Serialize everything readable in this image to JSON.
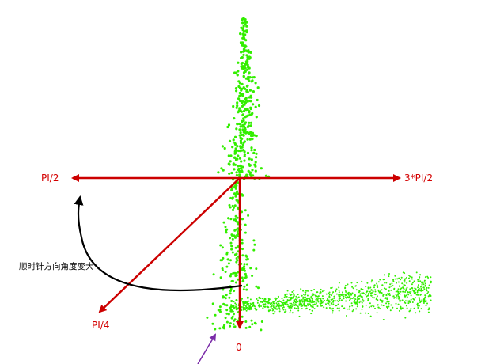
{
  "labels": {
    "left": "PI/2",
    "right": "3*PI/2",
    "diagonal": "PI/4",
    "bottom": "0",
    "rotation_note": "顺时针方向角度变大"
  },
  "colors": {
    "axis": "#cc0000",
    "label": "#d40000",
    "points": "#33ee00",
    "rotation_arrow": "#000000",
    "pointer_arrow": "#7a2ba8",
    "background": "#ffffff"
  }
}
